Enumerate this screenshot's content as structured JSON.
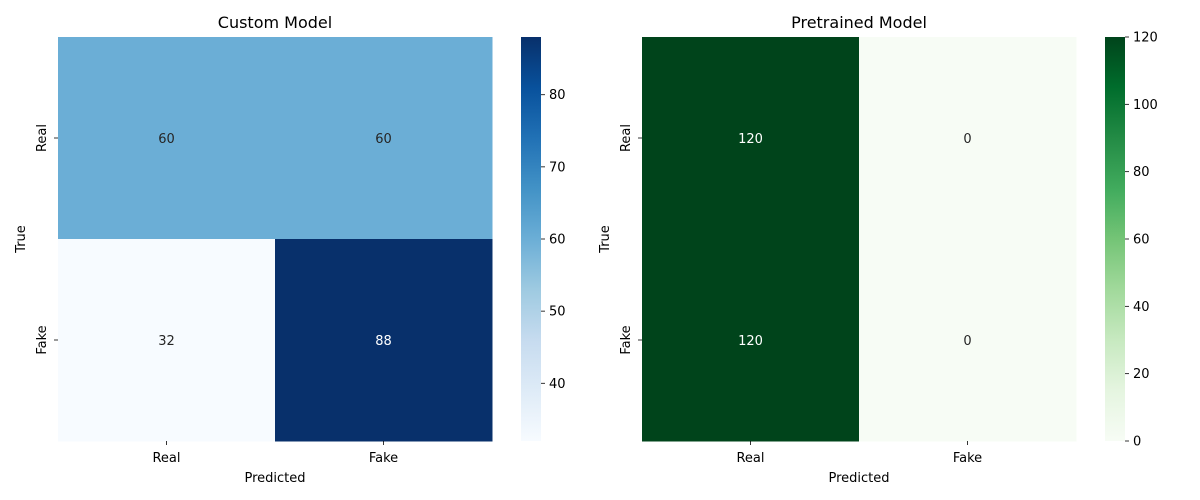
{
  "chart_data": [
    {
      "type": "heatmap",
      "title": "Custom Model",
      "xlabel": "Predicted",
      "ylabel": "True",
      "x_categories": [
        "Real",
        "Fake"
      ],
      "y_categories": [
        "Real",
        "Fake"
      ],
      "values": [
        [
          60,
          60
        ],
        [
          32,
          88
        ]
      ],
      "colormap": "Blues",
      "colorbar": {
        "min": 32,
        "max": 88,
        "ticks": [
          40,
          50,
          60,
          70,
          80
        ]
      }
    },
    {
      "type": "heatmap",
      "title": "Pretrained Model",
      "xlabel": "Predicted",
      "ylabel": "True",
      "x_categories": [
        "Real",
        "Fake"
      ],
      "y_categories": [
        "Real",
        "Fake"
      ],
      "values": [
        [
          120,
          0
        ],
        [
          120,
          0
        ]
      ],
      "colormap": "Greens",
      "colorbar": {
        "min": 0,
        "max": 120,
        "ticks": [
          0,
          20,
          40,
          60,
          80,
          100,
          120
        ]
      }
    }
  ],
  "colormaps": {
    "Blues": [
      "#f7fbff",
      "#deebf7",
      "#c6dbef",
      "#9ecae1",
      "#6baed6",
      "#4292c6",
      "#2171b5",
      "#08519c",
      "#08306b"
    ],
    "Greens": [
      "#f7fcf5",
      "#e5f5e0",
      "#c7e9c0",
      "#a1d99b",
      "#74c476",
      "#41ab5d",
      "#238b45",
      "#006d2c",
      "#00441b"
    ]
  }
}
